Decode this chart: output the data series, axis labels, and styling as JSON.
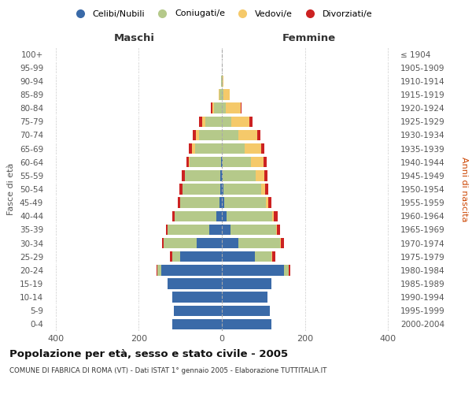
{
  "age_groups": [
    "0-4",
    "5-9",
    "10-14",
    "15-19",
    "20-24",
    "25-29",
    "30-34",
    "35-39",
    "40-44",
    "45-49",
    "50-54",
    "55-59",
    "60-64",
    "65-69",
    "70-74",
    "75-79",
    "80-84",
    "85-89",
    "90-94",
    "95-99",
    "100+"
  ],
  "birth_years": [
    "2000-2004",
    "1995-1999",
    "1990-1994",
    "1985-1989",
    "1980-1984",
    "1975-1979",
    "1970-1974",
    "1965-1969",
    "1960-1964",
    "1955-1959",
    "1950-1954",
    "1945-1949",
    "1940-1944",
    "1935-1939",
    "1930-1934",
    "1925-1929",
    "1920-1924",
    "1915-1919",
    "1910-1914",
    "1905-1909",
    "≤ 1904"
  ],
  "maschi": {
    "celibi": [
      120,
      115,
      120,
      130,
      145,
      100,
      60,
      30,
      14,
      5,
      4,
      3,
      2,
      0,
      0,
      0,
      0,
      0,
      0,
      0,
      0
    ],
    "coniugati": [
      0,
      0,
      0,
      0,
      10,
      20,
      80,
      100,
      100,
      95,
      90,
      85,
      75,
      65,
      55,
      40,
      18,
      5,
      2,
      0,
      0
    ],
    "vedovi": [
      0,
      0,
      0,
      0,
      0,
      0,
      0,
      0,
      0,
      0,
      1,
      1,
      2,
      6,
      8,
      8,
      5,
      3,
      0,
      0,
      0
    ],
    "divorziati": [
      0,
      0,
      0,
      0,
      2,
      4,
      4,
      5,
      6,
      6,
      8,
      8,
      6,
      8,
      7,
      6,
      3,
      0,
      0,
      0,
      0
    ]
  },
  "femmine": {
    "nubili": [
      120,
      115,
      110,
      120,
      150,
      80,
      40,
      20,
      12,
      6,
      4,
      2,
      2,
      0,
      0,
      0,
      0,
      0,
      0,
      0,
      0
    ],
    "coniugate": [
      0,
      0,
      0,
      0,
      10,
      40,
      100,
      110,
      110,
      100,
      90,
      80,
      68,
      55,
      40,
      22,
      10,
      4,
      2,
      0,
      0
    ],
    "vedove": [
      0,
      0,
      0,
      0,
      0,
      2,
      2,
      2,
      3,
      5,
      10,
      20,
      30,
      40,
      45,
      45,
      35,
      15,
      2,
      0,
      0
    ],
    "divorziate": [
      0,
      0,
      0,
      0,
      4,
      6,
      8,
      8,
      10,
      8,
      8,
      8,
      8,
      8,
      8,
      6,
      2,
      0,
      0,
      0,
      0
    ]
  },
  "colors": {
    "celibi": "#3a6aa8",
    "coniugati": "#b5c98a",
    "vedovi": "#f5c96a",
    "divorziati": "#cc2222"
  },
  "legend_labels": [
    "Celibi/Nubili",
    "Coniugati/e",
    "Vedovi/e",
    "Divorziati/e"
  ],
  "title": "Popolazione per età, sesso e stato civile - 2005",
  "subtitle": "COMUNE DI FABRICA DI ROMA (VT) - Dati ISTAT 1° gennaio 2005 - Elaborazione TUTTITALIA.IT",
  "ylabel_left": "Fasce di età",
  "ylabel_right": "Anni di nascita",
  "xlabel_left": "Maschi",
  "xlabel_right": "Femmine",
  "xlim": 420,
  "xtick_vals": [
    -400,
    -200,
    0,
    200,
    400
  ],
  "background_color": "#ffffff",
  "grid_color": "#cccccc"
}
